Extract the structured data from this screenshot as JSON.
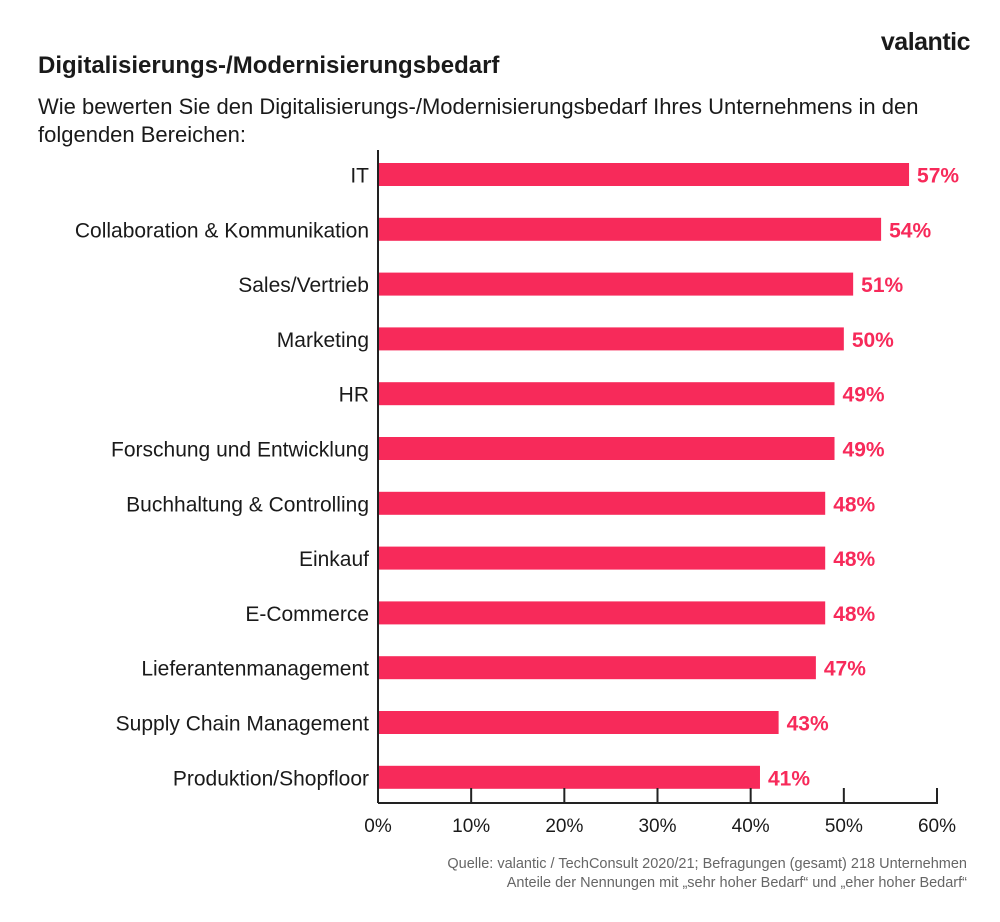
{
  "brand": {
    "logo": "valantic",
    "accent_color": "#f72a5a"
  },
  "chart_data": {
    "type": "bar",
    "orientation": "horizontal",
    "title": "Digitalisierungs-/Modernisierungsbedarf",
    "subtitle": "Wie bewerten Sie den Digitalisierungs-/Modernisierungsbedarf Ihres Unternehmens in den folgenden Bereichen:",
    "categories": [
      "IT",
      "Collaboration & Kommunikation",
      "Sales/Vertrieb",
      "Marketing",
      "HR",
      "Forschung und Entwicklung",
      "Buchhaltung & Controlling",
      "Einkauf",
      "E-Commerce",
      "Lieferantenmanagement",
      "Supply Chain Management",
      "Produktion/Shopfloor"
    ],
    "values": [
      57,
      54,
      51,
      50,
      49,
      49,
      48,
      48,
      48,
      47,
      43,
      41
    ],
    "value_labels": [
      "57%",
      "54%",
      "51%",
      "50%",
      "49%",
      "49%",
      "48%",
      "48%",
      "48%",
      "47%",
      "43%",
      "41%"
    ],
    "xlim": [
      0,
      60
    ],
    "xticks": [
      0,
      10,
      20,
      30,
      40,
      50,
      60
    ],
    "xtick_labels": [
      "0%",
      "10%",
      "20%",
      "30%",
      "40%",
      "50%",
      "60%"
    ],
    "xlabel": "",
    "ylabel": "",
    "grid": false,
    "source": [
      "Quelle: valantic / TechConsult 2020/21; Befragungen (gesamt) 218 Unternehmen",
      "Anteile der Nennungen mit „sehr hoher Bedarf“ und „eher hoher Bedarf“"
    ]
  }
}
